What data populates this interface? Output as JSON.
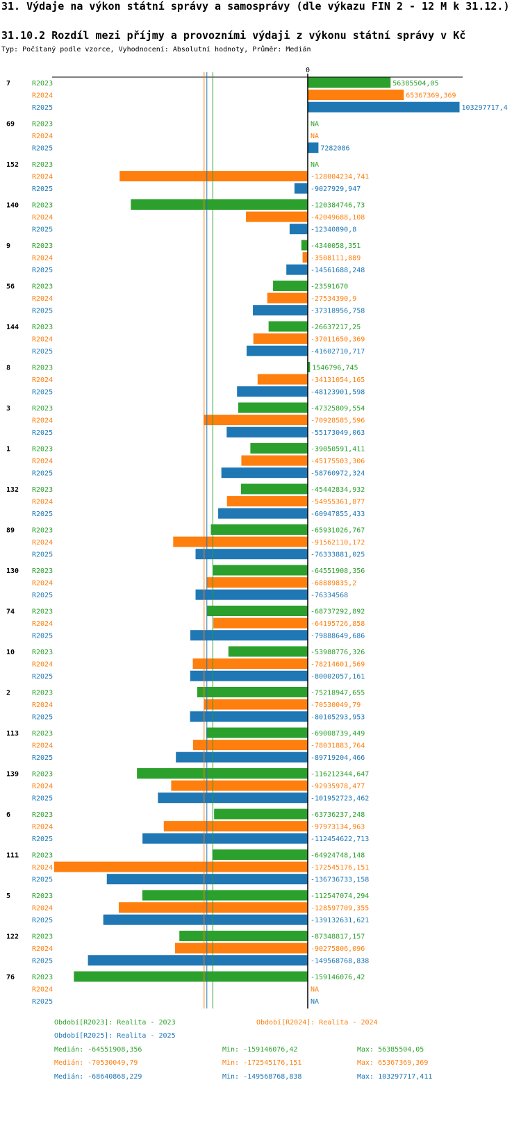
{
  "page": {
    "title": "31. Výdaje na výkon státní správy a samosprávy (dle výkazu FIN 2 - 12 M k 31.12.)",
    "subtitle": "31.10.2 Rozdíl mezi příjmy a provozními výdaji z výkonu státní správy v Kč",
    "description": "Typ: Počítaný podle vzorce, Vyhodnocení: Absolutní hodnoty, Průměr: Medián"
  },
  "colors": {
    "R2023": "#2ca02c",
    "R2024": "#ff7f0e",
    "R2025": "#1f77b4"
  },
  "chart_data": {
    "type": "bar",
    "orientation": "horizontal",
    "zero_label": "0",
    "na_label": "NA",
    "series_names": [
      "R2023",
      "R2024",
      "R2025"
    ],
    "categories": [
      "7",
      "69",
      "152",
      "140",
      "9",
      "56",
      "144",
      "8",
      "3",
      "1",
      "132",
      "89",
      "130",
      "74",
      "10",
      "2",
      "113",
      "139",
      "6",
      "111",
      "5",
      "122",
      "76"
    ],
    "series": [
      {
        "name": "R2023",
        "values": [
          56385504.05,
          null,
          null,
          -120384746.73,
          -4340058.351,
          -23591670,
          -26637217.25,
          1546796.745,
          -47325809.554,
          -39050591.411,
          -45442834.932,
          -65931026.767,
          -64551908.356,
          -68737292.892,
          -53988776.326,
          -75218947.655,
          -69008739.449,
          -116212344.647,
          -63736237.248,
          -64924748.148,
          -112547074.294,
          -87348817.157,
          -159146076.42
        ]
      },
      {
        "name": "R2024",
        "values": [
          65367369.369,
          null,
          -128004234.741,
          -42049688.108,
          -3508111.889,
          -27534390.9,
          -37011650.369,
          -34131054.165,
          -70928585.596,
          -45175503.306,
          -54955361.877,
          -91562110.172,
          -68889835.2,
          -64195726.858,
          -78214601.569,
          -70530049.79,
          -78031883.764,
          -92935978.477,
          -97973134.963,
          -172545176.151,
          -128597709.355,
          -90275806.096,
          null
        ]
      },
      {
        "name": "R2025",
        "values": [
          103297717.4,
          7282086,
          -9027929.947,
          -12340890.8,
          -14561688.248,
          -37318956.758,
          -41602710.717,
          -48123901.598,
          -55173049.063,
          -58760972.324,
          -60947855.433,
          -76333881.025,
          -76334568,
          -79888649.686,
          -80002057.161,
          -80105293.953,
          -89719204.466,
          -101952723.462,
          -112454622.713,
          -136736733.158,
          -139132631.621,
          -149568768.838,
          null
        ]
      }
    ],
    "value_labels": [
      [
        "56385504,05",
        "65367369,369",
        "103297717,4"
      ],
      [
        "NA",
        "NA",
        "7282086"
      ],
      [
        "NA",
        "-128004234,741",
        "-9027929,947"
      ],
      [
        "-120384746,73",
        "-42049688,108",
        "-12340890,8"
      ],
      [
        "-4340058,351",
        "-3508111,889",
        "-14561688,248"
      ],
      [
        "-23591670",
        "-27534390,9",
        "-37318956,758"
      ],
      [
        "-26637217,25",
        "-37011650,369",
        "-41602710,717"
      ],
      [
        "1546796,745",
        "-34131054,165",
        "-48123901,598"
      ],
      [
        "-47325809,554",
        "-70928585,596",
        "-55173049,063"
      ],
      [
        "-39050591,411",
        "-45175503,306",
        "-58760972,324"
      ],
      [
        "-45442834,932",
        "-54955361,877",
        "-60947855,433"
      ],
      [
        "-65931026,767",
        "-91562110,172",
        "-76333881,025"
      ],
      [
        "-64551908,356",
        "-68889835,2",
        "-76334568"
      ],
      [
        "-68737292,892",
        "-64195726,858",
        "-79888649,686"
      ],
      [
        "-53988776,326",
        "-78214601,569",
        "-80002057,161"
      ],
      [
        "-75218947,655",
        "-70530049,79",
        "-80105293,953"
      ],
      [
        "-69008739,449",
        "-78031883,764",
        "-89719204,466"
      ],
      [
        "-116212344,647",
        "-92935978,477",
        "-101952723,462"
      ],
      [
        "-63736237,248",
        "-97973134,963",
        "-112454622,713"
      ],
      [
        "-64924748,148",
        "-172545176,151",
        "-136736733,158"
      ],
      [
        "-112547074,294",
        "-128597709,355",
        "-139132631,621"
      ],
      [
        "-87348817,157",
        "-90275806,096",
        "-149568768,838"
      ],
      [
        "-159146076,42",
        "NA",
        "NA"
      ]
    ],
    "medians": [
      -64551908.356,
      -70530049.79,
      -68640868.229
    ],
    "xlim": [
      -172545176.151,
      103297717.411
    ]
  },
  "legend": {
    "periods": [
      "Období[R2023]: Realita - 2023",
      "Období[R2024]: Realita - 2024",
      "Období[R2025]: Realita - 2025"
    ],
    "stats": [
      {
        "median": "Medián: -64551908,356",
        "min": "Min: -159146076,42",
        "max": "Max: 56385504,05"
      },
      {
        "median": "Medián: -70530049,79",
        "min": "Min: -172545176,151",
        "max": "Max: 65367369,369"
      },
      {
        "median": "Medián: -68640868,229",
        "min": "Min: -149568768,838",
        "max": "Max: 103297717,411"
      }
    ]
  }
}
